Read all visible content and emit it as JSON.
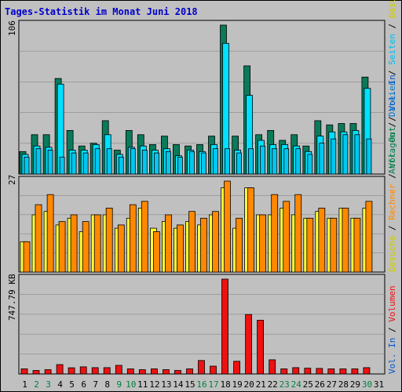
{
  "title": "Tages-Statistik im Monat Juni 2018",
  "colors": {
    "title": "#0000cc",
    "panel_bg": "#c0c0c0",
    "frame_bg": "#ffffff",
    "grid": "#888888",
    "hits": "#0a7a5a",
    "files": "#00e0ff",
    "pages": "#00c8f0",
    "visits": "#ffff33",
    "sites": "#ff8800",
    "kbytes": "#ee1111",
    "weekend": "#008040",
    "weekday": "#000000"
  },
  "chart_data": [
    {
      "type": "bar",
      "panel": "top",
      "max_label": "106",
      "ylim": [
        0,
        106
      ],
      "categories": [
        "1",
        "2",
        "3",
        "4",
        "5",
        "6",
        "7",
        "8",
        "9",
        "10",
        "11",
        "12",
        "13",
        "14",
        "15",
        "16",
        "17",
        "18",
        "19",
        "20",
        "21",
        "22",
        "23",
        "24",
        "25",
        "26",
        "27",
        "28",
        "29",
        "30",
        "31"
      ],
      "weekend_days": [
        "2",
        "3",
        "9",
        "10",
        "16",
        "17",
        "23",
        "24",
        "30"
      ],
      "series": [
        {
          "name": "Anfragen",
          "values": [
            16,
            28,
            28,
            68,
            31,
            20,
            22,
            38,
            17,
            31,
            28,
            21,
            27,
            21,
            20,
            21,
            27,
            106,
            27,
            77,
            28,
            31,
            24,
            28,
            20,
            38,
            35,
            36,
            36,
            69,
            0
          ]
        },
        {
          "name": "Dateien",
          "values": [
            14,
            20,
            19,
            64,
            17,
            17,
            21,
            28,
            14,
            19,
            20,
            17,
            18,
            13,
            17,
            16,
            21,
            93,
            17,
            56,
            24,
            21,
            21,
            20,
            16,
            27,
            30,
            30,
            31,
            61,
            0
          ]
        },
        {
          "name": "Seiten",
          "values": [
            12,
            18,
            17,
            12,
            15,
            15,
            18,
            18,
            12,
            18,
            17,
            15,
            16,
            12,
            16,
            15,
            18,
            18,
            15,
            18,
            20,
            18,
            18,
            18,
            14,
            22,
            25,
            28,
            28,
            25,
            0
          ]
        }
      ],
      "legend": [
        "Anfragen",
        "Dateien",
        "Seiten"
      ],
      "legend_position": "right"
    },
    {
      "type": "bar",
      "panel": "middle",
      "max_label": "27",
      "ylim": [
        0,
        27
      ],
      "categories": [
        "1",
        "2",
        "3",
        "4",
        "5",
        "6",
        "7",
        "8",
        "9",
        "10",
        "11",
        "12",
        "13",
        "14",
        "15",
        "16",
        "17",
        "18",
        "19",
        "20",
        "21",
        "22",
        "23",
        "24",
        "25",
        "26",
        "27",
        "28",
        "29",
        "30",
        "31"
      ],
      "series": [
        {
          "name": "Besuche",
          "values": [
            9,
            17,
            18,
            14,
            16,
            12,
            17,
            17,
            13,
            16,
            19,
            13,
            15,
            13,
            15,
            14,
            17,
            25,
            13,
            25,
            17,
            17,
            19,
            17,
            16,
            18,
            16,
            19,
            16,
            19,
            0
          ]
        },
        {
          "name": "Rechner",
          "values": [
            9,
            20,
            23,
            15,
            17,
            15,
            17,
            19,
            14,
            20,
            21,
            12,
            17,
            14,
            18,
            16,
            18,
            27,
            16,
            25,
            17,
            23,
            21,
            23,
            16,
            19,
            16,
            19,
            16,
            21,
            0
          ]
        }
      ],
      "legend": [
        "Besuche",
        "Rechner"
      ],
      "legend_position": "right"
    },
    {
      "type": "bar",
      "panel": "bottom",
      "max_label": "747.79 KB",
      "ylim": [
        0,
        747.79
      ],
      "categories": [
        "1",
        "2",
        "3",
        "4",
        "5",
        "6",
        "7",
        "8",
        "9",
        "10",
        "11",
        "12",
        "13",
        "14",
        "15",
        "16",
        "17",
        "18",
        "19",
        "20",
        "21",
        "22",
        "23",
        "24",
        "25",
        "26",
        "27",
        "28",
        "29",
        "30",
        "31"
      ],
      "series": [
        {
          "name": "Volumen",
          "values": [
            40,
            28,
            34,
            74,
            49,
            56,
            50,
            50,
            68,
            40,
            34,
            40,
            34,
            28,
            40,
            106,
            62,
            747.79,
            100,
            469,
            424,
            112,
            40,
            50,
            46,
            44,
            40,
            40,
            40,
            50,
            0
          ]
        }
      ],
      "legend": [
        "Volumen",
        "Vol. In",
        "Vol. Out"
      ],
      "legend_position": "right"
    }
  ],
  "legend_labels": {
    "top": [
      {
        "text": "Anfragen",
        "color": "#0a7a5a"
      },
      {
        "text": " / ",
        "color": "#000000"
      },
      {
        "text": "Dateien",
        "color": "#0077cc"
      },
      {
        "text": " / ",
        "color": "#000000"
      },
      {
        "text": "Seiten",
        "color": "#00bbee"
      },
      {
        "text": " / ",
        "color": "#000000"
      },
      {
        "text": "Besuche",
        "color": "#cccc00"
      }
    ],
    "middle": [
      {
        "text": "Besuche",
        "color": "#cccc00"
      },
      {
        "text": " / ",
        "color": "#000000"
      },
      {
        "text": "Rechner",
        "color": "#ff8800"
      },
      {
        "text": " / ",
        "color": "#000000"
      },
      {
        "text": "Vol. Out",
        "color": "#008040"
      },
      {
        "text": " / ",
        "color": "#000000"
      },
      {
        "text": "Vol. In",
        "color": "#0055cc"
      }
    ],
    "bottom": [
      {
        "text": "Vol. In",
        "color": "#0055cc"
      },
      {
        "text": " / ",
        "color": "#000000"
      },
      {
        "text": "Volumen",
        "color": "#ee1111"
      }
    ]
  }
}
